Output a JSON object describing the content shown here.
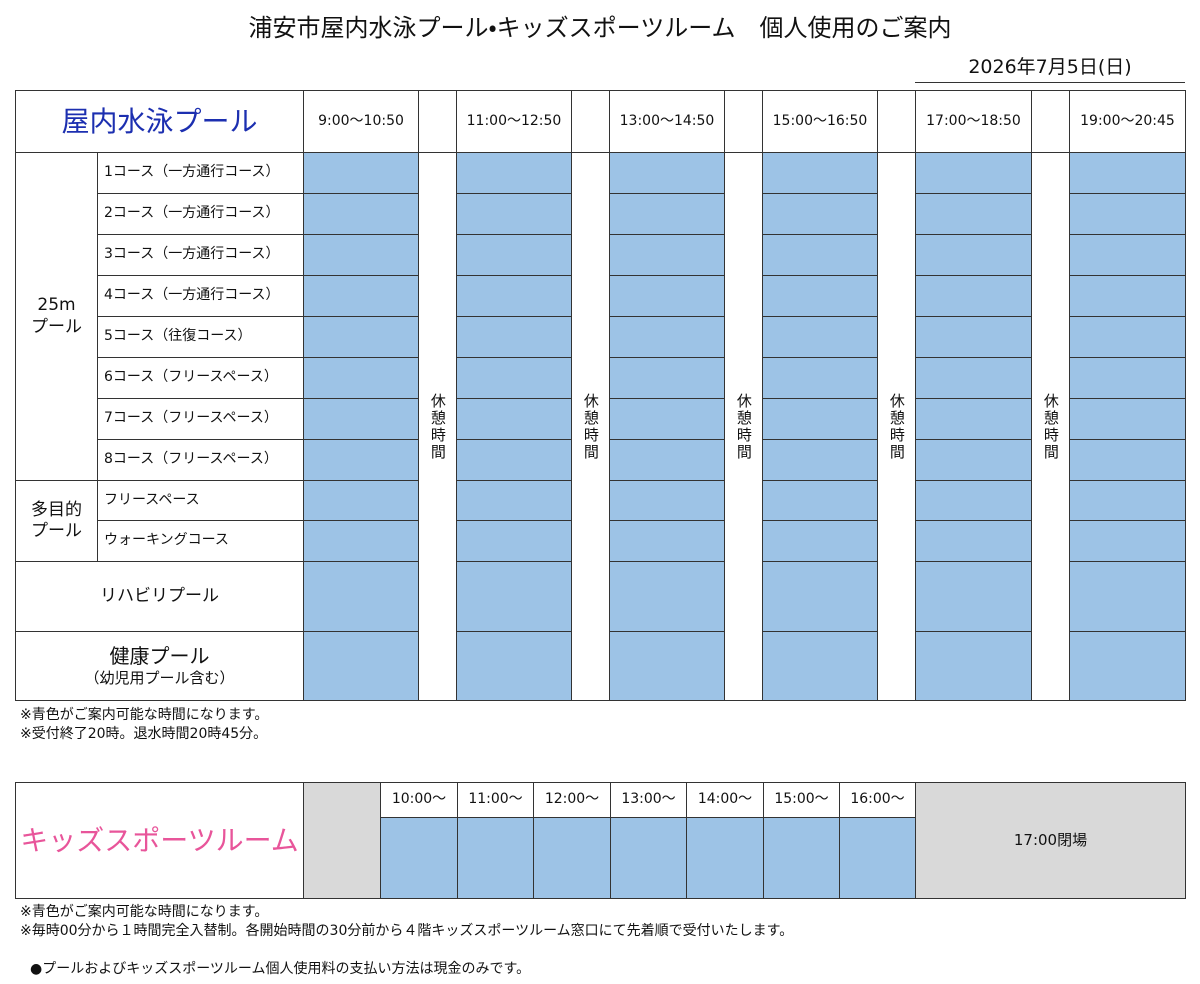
{
  "title": "浦安市屋内水泳プール・キッズスポーツルーム　個人使用のご案内",
  "date": "2026年7月5日(日)",
  "pool_table": {
    "heading": "屋内水泳プール",
    "time_slots": [
      "9:00～10:50",
      "11:00～12:50",
      "13:00～14:50",
      "15:00～16:50",
      "17:00～18:50",
      "19:00～20:45"
    ],
    "break_label": "休憩時間",
    "groups": [
      {
        "label_lines": [
          "25m",
          "プール"
        ],
        "rows": [
          "1コース（一方通行コース）",
          "2コース（一方通行コース）",
          "3コース（一方通行コース）",
          "4コース（一方通行コース）",
          "5コース（往復コース）",
          "6コース（フリースペース）",
          "7コース（フリースペース）",
          "8コース（フリースペース）"
        ]
      },
      {
        "label_lines": [
          "多目的",
          "プール"
        ],
        "rows": [
          "フリースペース",
          "ウォーキングコース"
        ]
      }
    ],
    "single_rows": [
      [
        "リハビリプール"
      ],
      [
        "健康プール",
        "（幼児用プール含む）"
      ]
    ],
    "notes": [
      "※青色がご案内可能な時間になります。",
      "※受付終了20時。退水時間20時45分。"
    ]
  },
  "kids_table": {
    "heading": "キッズスポーツルーム",
    "time_slots": [
      "10:00～",
      "11:00～",
      "12:00～",
      "13:00～",
      "14:00～",
      "15:00～",
      "16:00～"
    ],
    "closed_label": "17:00閉場",
    "notes": [
      "※青色がご案内可能な時間になります。",
      "※毎時00分から１時間完全入替制。各開始時間の30分前から４階キッズスポーツルーム窓口にて先着順で受付いたします。"
    ]
  },
  "footer_note": "●プールおよびキッズスポーツルーム個人使用料の支払い方法は現金のみです。"
}
